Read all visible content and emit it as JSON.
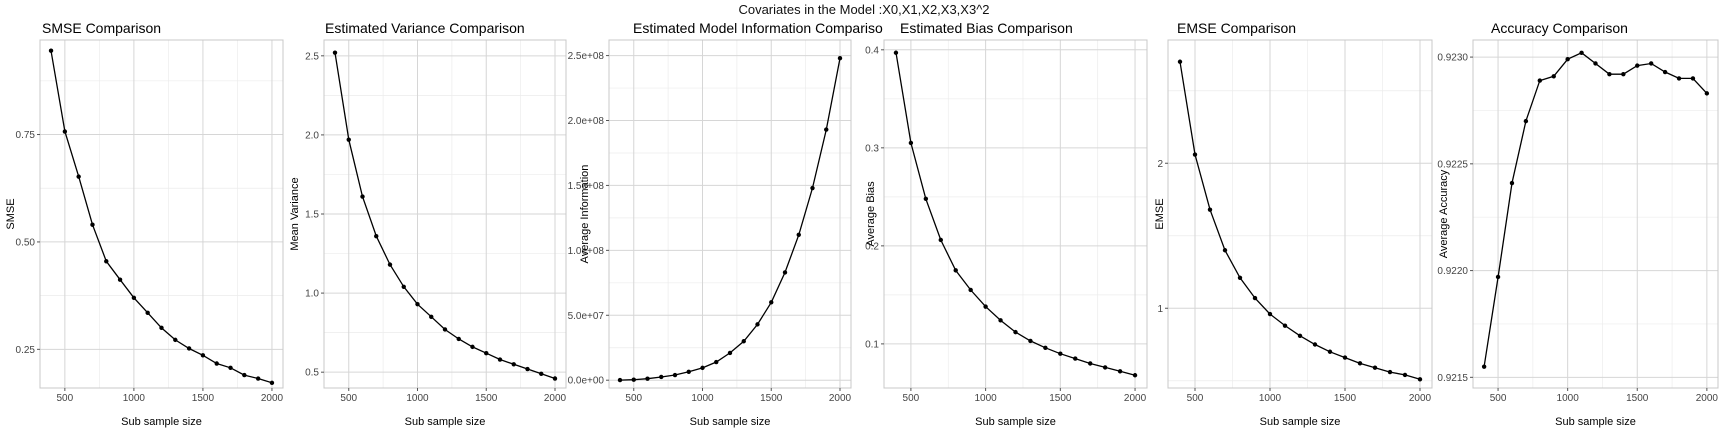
{
  "figure": {
    "supertitle": "Covariates in the Model :X0,X1,X2,X3,X3^2"
  },
  "chart_data": [
    {
      "type": "line",
      "title": "SMSE Comparison",
      "xlabel": "Sub sample size",
      "ylabel": "SMSE",
      "xlim": [
        320,
        2080
      ],
      "ylim": [
        0.16,
        0.97
      ],
      "xticks": [
        500,
        1000,
        1500,
        2000
      ],
      "xtick_labels": [
        "500",
        "1000",
        "1500",
        "2000"
      ],
      "yticks": [
        0.25,
        0.5,
        0.75
      ],
      "ytick_labels": [
        "0.25",
        "0.50",
        "0.75"
      ],
      "grid": true,
      "x": [
        400,
        500,
        600,
        700,
        800,
        900,
        1000,
        1100,
        1200,
        1300,
        1400,
        1500,
        1600,
        1700,
        1800,
        1900,
        2000
      ],
      "y": [
        0.945,
        0.757,
        0.652,
        0.54,
        0.455,
        0.412,
        0.37,
        0.335,
        0.3,
        0.272,
        0.252,
        0.236,
        0.217,
        0.207,
        0.19,
        0.182,
        0.172
      ]
    },
    {
      "type": "line",
      "title": "Estimated Variance Comparison",
      "xlabel": "Sub sample size",
      "ylabel": "Mean Variance",
      "xlim": [
        320,
        2080
      ],
      "ylim": [
        0.4,
        2.6
      ],
      "xticks": [
        500,
        1000,
        1500,
        2000
      ],
      "xtick_labels": [
        "500",
        "1000",
        "1500",
        "2000"
      ],
      "yticks": [
        0.5,
        1.0,
        1.5,
        2.0,
        2.5
      ],
      "ytick_labels": [
        "0.5",
        "1.0",
        "1.5",
        "2.0",
        "2.5"
      ],
      "grid": true,
      "x": [
        400,
        500,
        600,
        700,
        800,
        900,
        1000,
        1100,
        1200,
        1300,
        1400,
        1500,
        1600,
        1700,
        1800,
        1900,
        2000
      ],
      "y": [
        2.52,
        1.97,
        1.61,
        1.36,
        1.18,
        1.04,
        0.93,
        0.85,
        0.77,
        0.71,
        0.66,
        0.62,
        0.58,
        0.55,
        0.52,
        0.49,
        0.46
      ]
    },
    {
      "type": "line",
      "title": "Estimated Model Information Compariso",
      "xlabel": "Sub sample size",
      "ylabel": "Average Information",
      "xlim": [
        320,
        2080
      ],
      "ylim": [
        -6000000,
        262000000
      ],
      "xticks": [
        500,
        1000,
        1500,
        2000
      ],
      "xtick_labels": [
        "500",
        "1000",
        "1500",
        "2000"
      ],
      "yticks": [
        0,
        50000000,
        100000000,
        150000000,
        200000000,
        250000000
      ],
      "ytick_labels": [
        "0.0e+00",
        "5.0e+07",
        "1.0e+08",
        "1.5e+08",
        "2.0e+08",
        "2.5e+08"
      ],
      "grid": true,
      "x": [
        400,
        500,
        600,
        700,
        800,
        900,
        1000,
        1100,
        1200,
        1300,
        1400,
        1500,
        1600,
        1700,
        1800,
        1900,
        2000
      ],
      "y": [
        100000,
        400000,
        1200000,
        2500000,
        4000000,
        6500000,
        9500000,
        14000000,
        21000000,
        30000000,
        43000000,
        60000000,
        83000000,
        112000000,
        148000000,
        193000000,
        248000000
      ]
    },
    {
      "type": "line",
      "title": "Estimated Bias Comparison",
      "xlabel": "Sub sample size",
      "ylabel": "Average Bias",
      "xlim": [
        320,
        2080
      ],
      "ylim": [
        0.055,
        0.41
      ],
      "xticks": [
        500,
        1000,
        1500,
        2000
      ],
      "xtick_labels": [
        "500",
        "1000",
        "1500",
        "2000"
      ],
      "yticks": [
        0.1,
        0.2,
        0.3,
        0.4
      ],
      "ytick_labels": [
        "0.1",
        "0.2",
        "0.3",
        "0.4"
      ],
      "grid": true,
      "x": [
        400,
        500,
        600,
        700,
        800,
        900,
        1000,
        1100,
        1200,
        1300,
        1400,
        1500,
        1600,
        1700,
        1800,
        1900,
        2000
      ],
      "y": [
        0.397,
        0.305,
        0.248,
        0.206,
        0.175,
        0.155,
        0.138,
        0.124,
        0.112,
        0.103,
        0.096,
        0.09,
        0.085,
        0.08,
        0.076,
        0.072,
        0.068
      ]
    },
    {
      "type": "line",
      "title": "EMSE Comparison",
      "xlabel": "Sub sample size",
      "ylabel": "EMSE",
      "xlim": [
        320,
        2080
      ],
      "ylim": [
        0.45,
        2.85
      ],
      "xticks": [
        500,
        1000,
        1500,
        2000
      ],
      "xtick_labels": [
        "500",
        "1000",
        "1500",
        "2000"
      ],
      "yticks": [
        1,
        2
      ],
      "ytick_labels": [
        "1",
        "2"
      ],
      "grid": true,
      "x": [
        400,
        500,
        600,
        700,
        800,
        900,
        1000,
        1100,
        1200,
        1300,
        1400,
        1500,
        1600,
        1700,
        1800,
        1900,
        2000
      ],
      "y": [
        2.7,
        2.06,
        1.68,
        1.4,
        1.21,
        1.07,
        0.96,
        0.88,
        0.81,
        0.75,
        0.7,
        0.66,
        0.62,
        0.59,
        0.56,
        0.54,
        0.51
      ]
    },
    {
      "type": "line",
      "title": "Accuracy Comparison",
      "xlabel": "Sub sample size",
      "ylabel": "Average Accuracy",
      "xlim": [
        320,
        2080
      ],
      "ylim": [
        0.92145,
        0.92308
      ],
      "xticks": [
        500,
        1000,
        1500,
        2000
      ],
      "xtick_labels": [
        "500",
        "1000",
        "1500",
        "2000"
      ],
      "yticks": [
        0.9215,
        0.922,
        0.9225,
        0.923
      ],
      "ytick_labels": [
        "0.9215",
        "0.9220",
        "0.9225",
        "0.9230"
      ],
      "grid": true,
      "x": [
        400,
        500,
        600,
        700,
        800,
        900,
        1000,
        1100,
        1200,
        1300,
        1400,
        1500,
        1600,
        1700,
        1800,
        1900,
        2000
      ],
      "y": [
        0.92155,
        0.92197,
        0.92241,
        0.9227,
        0.92289,
        0.92291,
        0.92299,
        0.92302,
        0.92297,
        0.92292,
        0.92292,
        0.92296,
        0.92297,
        0.92293,
        0.9229,
        0.9229,
        0.92283
      ]
    }
  ]
}
